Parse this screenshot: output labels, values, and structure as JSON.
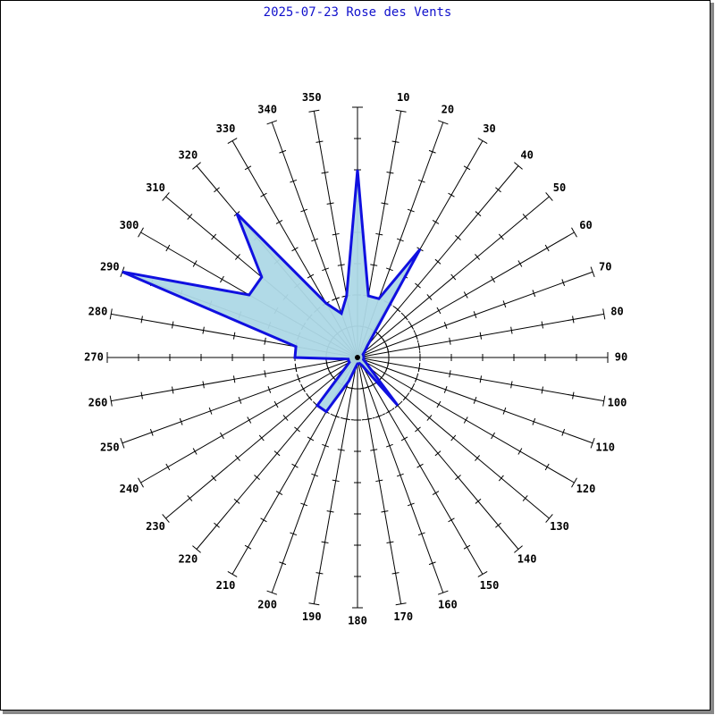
{
  "chart_data": {
    "type": "radar",
    "title": "2025-07-23 Rose des Vents",
    "categories": [
      null,
      "10",
      "20",
      "30",
      "40",
      "50",
      "60",
      "70",
      "80",
      "90",
      "100",
      "110",
      "120",
      "130",
      "140",
      "150",
      "160",
      "170",
      "180",
      "190",
      "200",
      "210",
      "220",
      "230",
      "240",
      "250",
      "260",
      "270",
      "280",
      "290",
      "300",
      "310",
      "320",
      "330",
      "340",
      "350"
    ],
    "values": [
      6.0,
      2.0,
      2.0,
      4.0,
      0.5,
      0.3,
      0.2,
      0.2,
      0.2,
      0.2,
      0.2,
      0.2,
      0.3,
      0.5,
      2.0,
      0.3,
      0.2,
      0.2,
      0.2,
      0.3,
      0.8,
      2.0,
      2.0,
      0.5,
      0.3,
      0.3,
      0.3,
      2.0,
      2.0,
      8.0,
      4.0,
      4.0,
      6.0,
      2.0,
      1.5,
      2.0
    ],
    "color": "#1010e0",
    "fill": "#add8e6",
    "rlim": [
      0,
      8
    ],
    "rticks": [
      1,
      2,
      3,
      4,
      5,
      6,
      7,
      8
    ],
    "rings": [
      1,
      2
    ]
  }
}
